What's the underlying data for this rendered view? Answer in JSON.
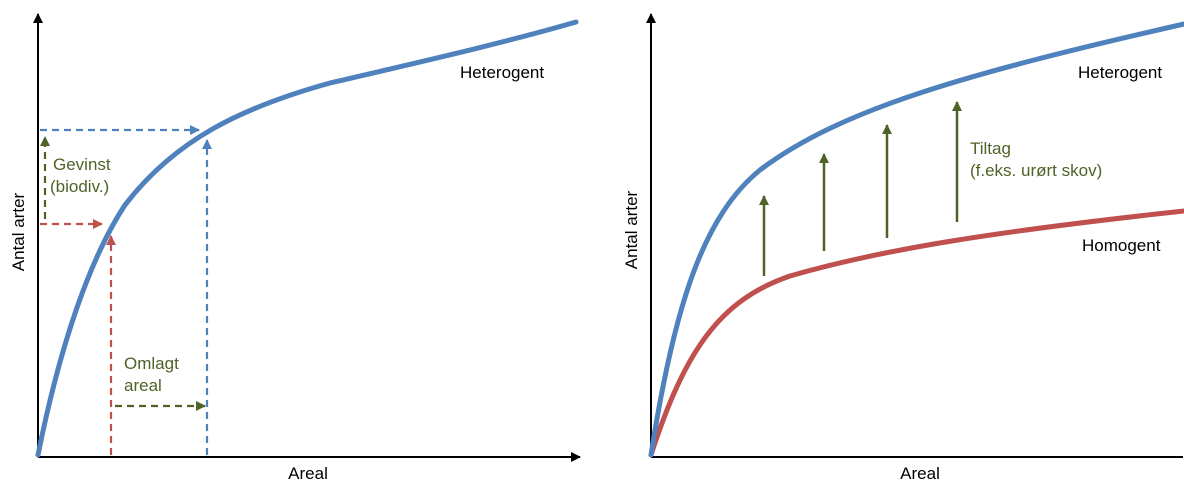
{
  "left_panel": {
    "y_axis_label": "Antal arter",
    "x_axis_label": "Areal",
    "curve_label": "Heterogent",
    "gain_label_line1": "Gevinst",
    "gain_label_line2": "(biodiv.)",
    "area_label_line1": "Omlagt",
    "area_label_line2": "areal"
  },
  "right_panel": {
    "y_axis_label": "Antal arter",
    "x_axis_label": "Areal",
    "upper_curve_label": "Heterogent",
    "lower_curve_label": "Homogent",
    "measure_label_line1": "Tiltag",
    "measure_label_line2": "(f.eks. urørt skov)"
  },
  "colors": {
    "heterogeneous_curve": "#4f81bd",
    "homogeneous_curve": "#c0504d",
    "green_annotation": "#4f6228",
    "axis": "#000000"
  }
}
